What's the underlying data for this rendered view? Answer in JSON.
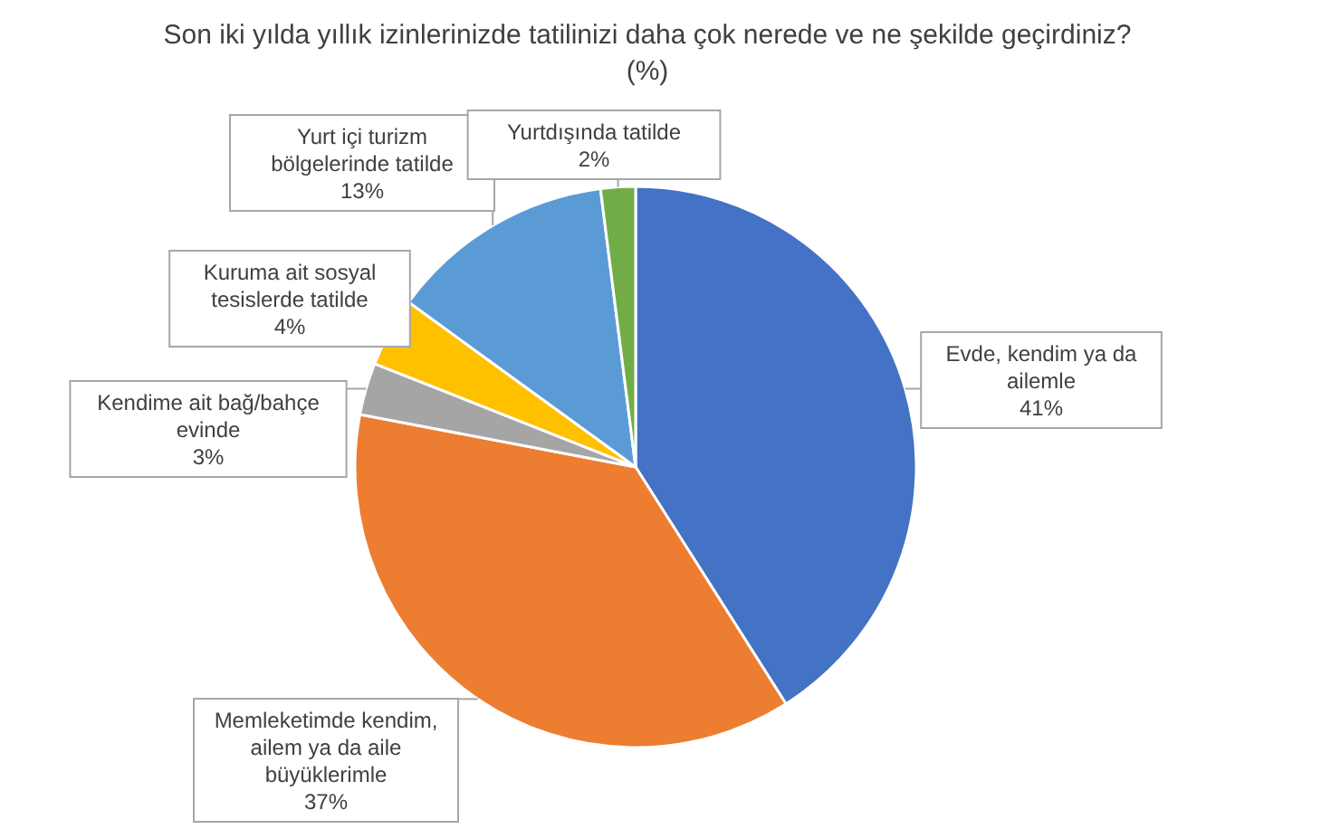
{
  "chart_data": {
    "type": "pie",
    "title": "Son iki yılda yıllık izinlerinizde tatilinizi daha çok nerede ve ne şekilde geçirdiniz? (%)",
    "categories": [
      "Evde, kendim ya da ailemle",
      "Memleketimde kendim, ailem ya da aile büyüklerimle",
      "Kendime ait bağ/bahçe evinde",
      "Kuruma ait sosyal tesislerde tatilde",
      "Yurt içi turizm bölgelerinde tatilde",
      "Yurtdışında tatilde"
    ],
    "values": [
      41,
      37,
      3,
      4,
      13,
      2
    ],
    "value_labels": [
      "41%",
      "37%",
      "3%",
      "4%",
      "13%",
      "2%"
    ],
    "colors": [
      "#4472c4",
      "#ed7d31",
      "#a5a5a5",
      "#ffc000",
      "#5b9bd5",
      "#70ad47"
    ]
  }
}
